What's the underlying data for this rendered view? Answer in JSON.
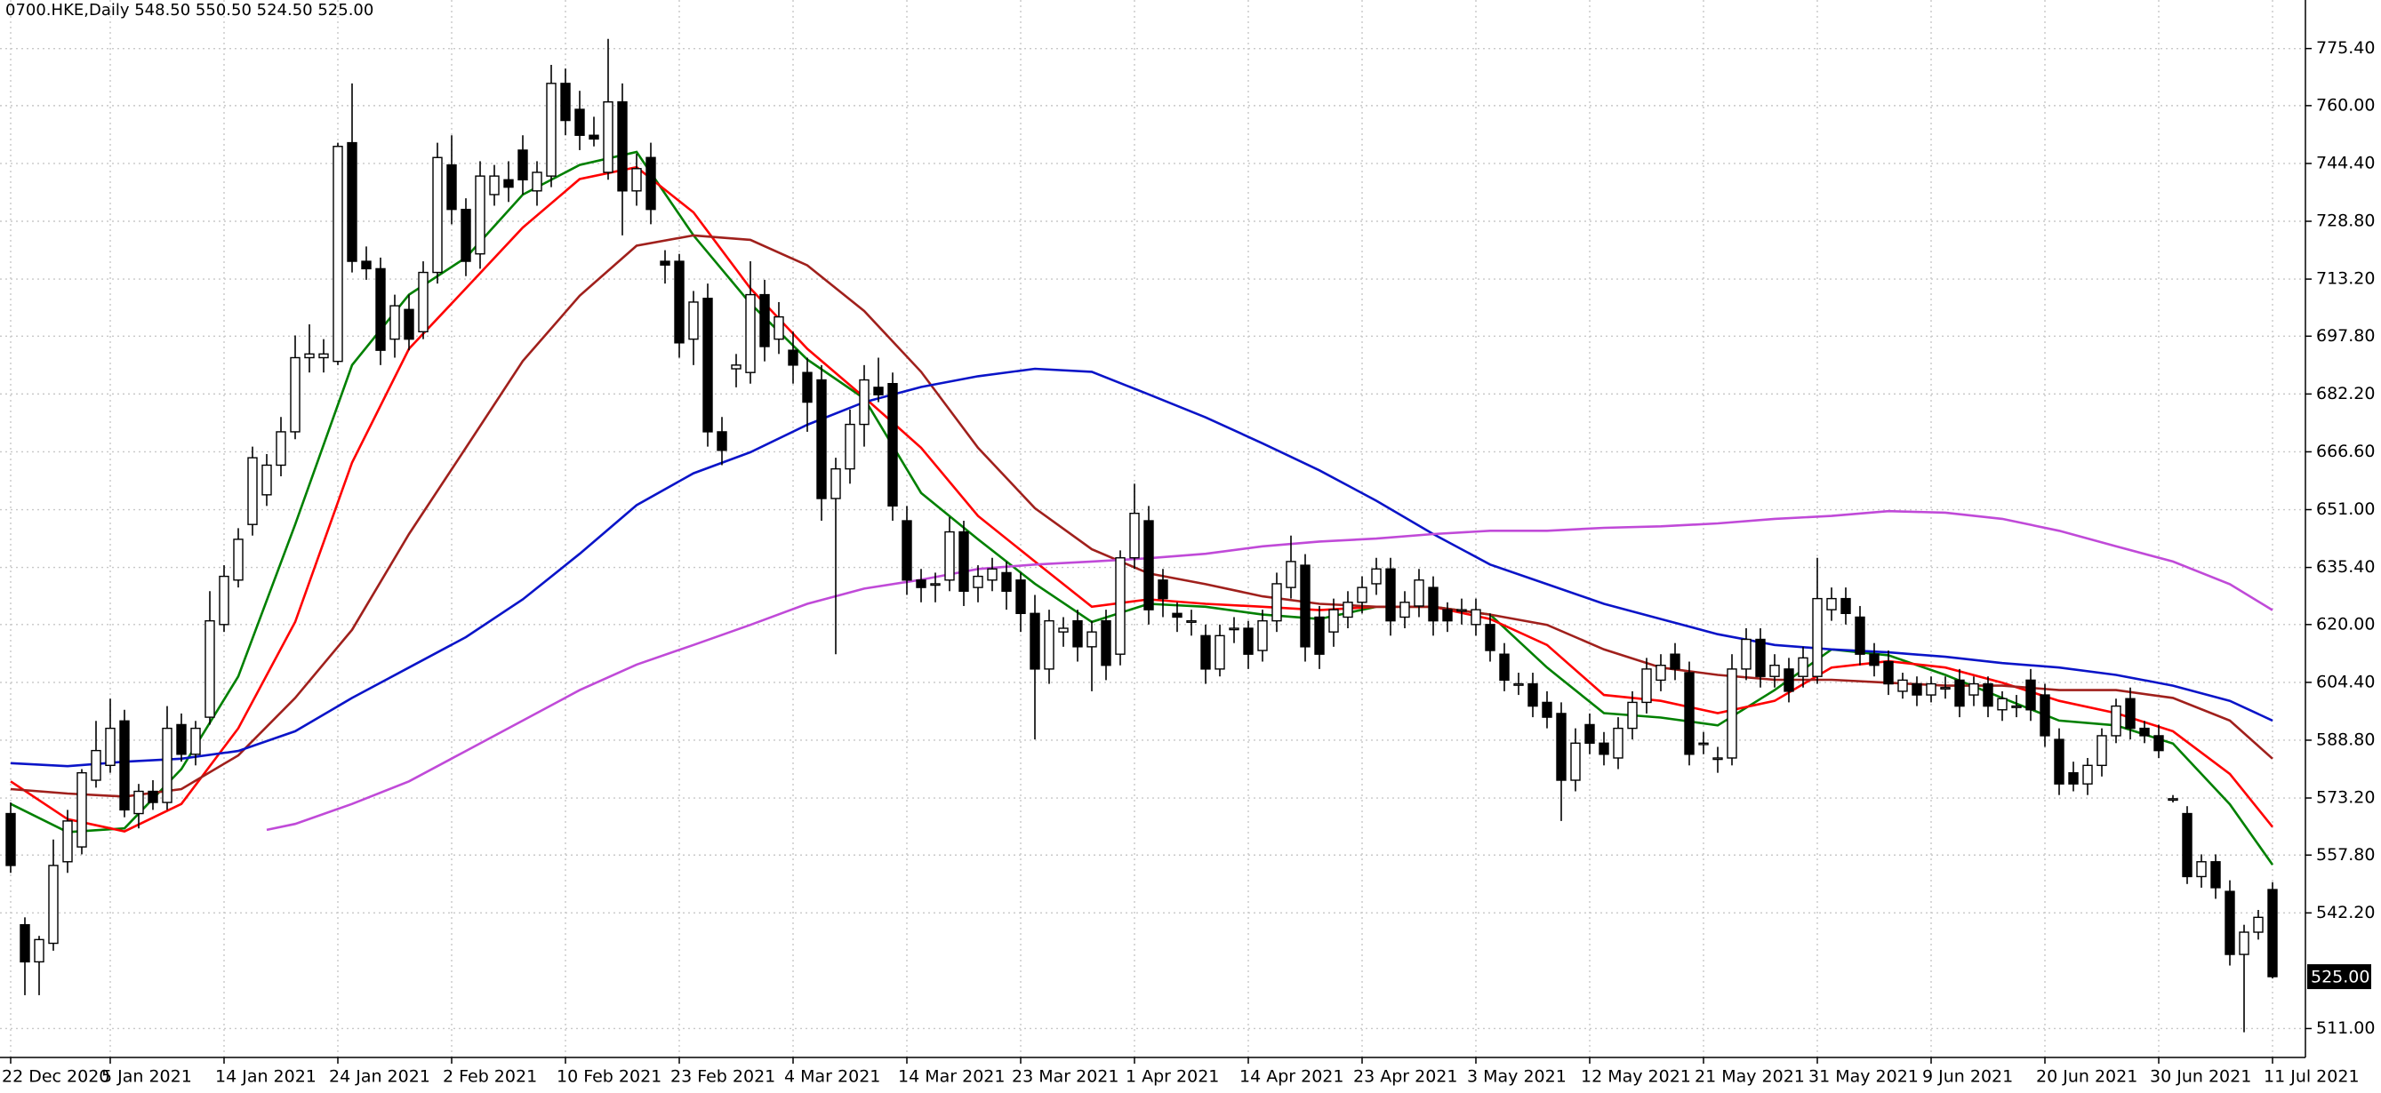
{
  "chart_data": {
    "type": "candlestick",
    "title": "0700.HKE,Daily  548.50 550.50 524.50 525.00",
    "categories": [
      "22 Dec 2020",
      null,
      null,
      null,
      null,
      null,
      null,
      "5 Jan 2021",
      null,
      null,
      null,
      null,
      null,
      null,
      null,
      "14 Jan 2021",
      null,
      null,
      null,
      null,
      null,
      null,
      null,
      "24 Jan 2021",
      null,
      null,
      null,
      null,
      null,
      null,
      null,
      "2 Feb 2021",
      null,
      null,
      null,
      null,
      null,
      null,
      null,
      "10 Feb 2021",
      null,
      null,
      null,
      null,
      null,
      null,
      null,
      "23 Feb 2021",
      null,
      null,
      null,
      null,
      null,
      null,
      null,
      "4 Mar 2021",
      null,
      null,
      null,
      null,
      null,
      null,
      null,
      "14 Mar 2021",
      null,
      null,
      null,
      null,
      null,
      null,
      null,
      "23 Mar 2021",
      null,
      null,
      null,
      null,
      null,
      null,
      null,
      "1 Apr 2021",
      null,
      null,
      null,
      null,
      null,
      null,
      null,
      "14 Apr 2021",
      null,
      null,
      null,
      null,
      null,
      null,
      null,
      "23 Apr 2021",
      null,
      null,
      null,
      null,
      null,
      null,
      null,
      "3 May 2021",
      null,
      null,
      null,
      null,
      null,
      null,
      null,
      "12 May 2021",
      null,
      null,
      null,
      null,
      null,
      null,
      null,
      "21 May 2021",
      null,
      null,
      null,
      null,
      null,
      null,
      null,
      "31 May 2021",
      null,
      null,
      null,
      null,
      null,
      null,
      null,
      "9 Jun 2021",
      null,
      null,
      null,
      null,
      null,
      null,
      null,
      "20 Jun 2021",
      null,
      null,
      null,
      null,
      null,
      null,
      null,
      "30 Jun 2021",
      null,
      null,
      null,
      null,
      null,
      null,
      null,
      "11 Jul 2021"
    ],
    "open": [
      569,
      539,
      529,
      534,
      556,
      560,
      578,
      582,
      594,
      569,
      575,
      572,
      593,
      585,
      595,
      620,
      632,
      647,
      655,
      663,
      672,
      692,
      692,
      691,
      750,
      718,
      716,
      697,
      705,
      699,
      715,
      744,
      732,
      720,
      736,
      740,
      748,
      737,
      741,
      766,
      759,
      752,
      742,
      761,
      737,
      746,
      718,
      718,
      697,
      708,
      672,
      689,
      688,
      709,
      697,
      694,
      688,
      686,
      654,
      662,
      674,
      684,
      685,
      648,
      632,
      631,
      632,
      645,
      630,
      632,
      634,
      632,
      623,
      608,
      618,
      621,
      614,
      621,
      612,
      638,
      648,
      632,
      623,
      621,
      617,
      608,
      619,
      619,
      613,
      621,
      630,
      636,
      622,
      618,
      622,
      626,
      631,
      635,
      622,
      625,
      630,
      624,
      624,
      620,
      620,
      612,
      604,
      604,
      599,
      596,
      578,
      593,
      588,
      584,
      592,
      599,
      605,
      612,
      607,
      588,
      584,
      584,
      608,
      616,
      606,
      608,
      606,
      606,
      624,
      627,
      622,
      612,
      610,
      602,
      604,
      601,
      603,
      605,
      601,
      604,
      597,
      598,
      605,
      601,
      589,
      580,
      577,
      582,
      590,
      600,
      592,
      590,
      573,
      569,
      552,
      556,
      548,
      531,
      537,
      548.5
    ],
    "high": [
      572,
      541,
      536,
      562,
      570,
      581,
      594,
      600,
      597,
      577,
      578,
      598,
      596,
      594,
      629,
      636,
      646,
      668,
      666,
      676,
      698,
      701,
      697,
      750,
      766,
      722,
      719,
      709,
      709,
      718,
      750,
      752,
      735,
      745,
      744,
      745,
      752,
      745,
      771,
      770,
      764,
      757,
      778,
      766,
      747,
      750,
      721,
      720,
      710,
      712,
      676,
      693,
      718,
      713,
      707,
      699,
      692,
      690,
      665,
      678,
      690,
      692,
      688,
      652,
      635,
      634,
      649,
      648,
      636,
      638,
      637,
      634,
      628,
      624,
      622,
      624,
      621,
      624,
      640,
      658,
      652,
      635,
      626,
      624,
      620,
      620,
      622,
      621,
      624,
      634,
      644,
      639,
      625,
      627,
      629,
      633,
      638,
      638,
      629,
      635,
      633,
      626,
      627,
      627,
      623,
      615,
      607,
      607,
      602,
      599,
      592,
      596,
      591,
      595,
      602,
      611,
      612,
      615,
      610,
      591,
      587,
      612,
      619,
      619,
      612,
      611,
      614,
      638,
      630,
      630,
      625,
      615,
      613,
      607,
      606,
      606,
      606,
      608,
      606,
      606,
      602,
      601,
      608,
      604,
      592,
      583,
      584,
      592,
      600,
      603,
      594,
      593,
      574,
      571,
      558,
      558,
      551,
      539,
      543,
      550.5
    ],
    "low": [
      553,
      520,
      520,
      532,
      553,
      558,
      576,
      580,
      568,
      565,
      570,
      570,
      583,
      582,
      593,
      618,
      630,
      644,
      652,
      660,
      670,
      688,
      688,
      690,
      715,
      713,
      690,
      692,
      694,
      697,
      712,
      728,
      714,
      716,
      733,
      734,
      736,
      733,
      738,
      752,
      748,
      749,
      740,
      725,
      733,
      728,
      712,
      692,
      690,
      668,
      663,
      684,
      685,
      691,
      693,
      685,
      672,
      648,
      612,
      658,
      668,
      680,
      648,
      628,
      626,
      626,
      629,
      625,
      626,
      629,
      624,
      618,
      589,
      604,
      614,
      610,
      602,
      605,
      609,
      635,
      620,
      622,
      618,
      617,
      604,
      606,
      615,
      608,
      610,
      618,
      627,
      610,
      608,
      614,
      619,
      623,
      628,
      617,
      619,
      622,
      617,
      618,
      620,
      617,
      610,
      602,
      601,
      595,
      592,
      567,
      575,
      585,
      582,
      581,
      589,
      596,
      602,
      605,
      582,
      585,
      580,
      582,
      605,
      603,
      603,
      599,
      603,
      604,
      621,
      620,
      609,
      606,
      601,
      600,
      598,
      599,
      600,
      595,
      598,
      595,
      594,
      595,
      594,
      587,
      574,
      575,
      574,
      579,
      588,
      589,
      588,
      584,
      572,
      550,
      549,
      546,
      528,
      510,
      535,
      524.5
    ],
    "close": [
      555,
      529,
      535,
      555,
      567,
      580,
      586,
      592,
      570,
      575,
      572,
      592,
      585,
      592,
      621,
      633,
      643,
      665,
      663,
      672,
      692,
      693,
      693,
      749,
      718,
      716,
      694,
      706,
      697,
      715,
      746,
      732,
      718,
      741,
      741,
      738,
      740,
      742,
      766,
      756,
      752,
      751,
      761,
      737,
      743,
      732,
      717,
      696,
      707,
      672,
      667,
      690,
      709,
      695,
      703,
      690,
      680,
      654,
      662,
      674,
      686,
      682,
      652,
      632,
      630,
      631,
      645,
      629,
      633,
      635,
      629,
      623,
      608,
      621,
      619,
      614,
      618,
      609,
      638,
      650,
      624,
      627,
      622,
      621,
      608,
      617,
      619,
      612,
      621,
      631,
      637,
      614,
      612,
      624,
      626,
      630,
      635,
      621,
      626,
      632,
      621,
      621,
      624,
      624,
      613,
      605,
      604,
      598,
      595,
      578,
      588,
      588,
      585,
      592,
      599,
      608,
      609,
      608,
      585,
      588,
      584,
      608,
      616,
      606,
      609,
      602,
      611,
      627,
      627,
      623,
      612,
      609,
      604,
      605,
      601,
      604,
      603,
      598,
      604,
      598,
      600,
      598,
      597,
      590,
      577,
      577,
      582,
      590,
      598,
      592,
      590,
      586,
      573,
      552,
      556,
      549,
      531,
      537,
      541,
      525
    ],
    "bull_color": "#ffffff",
    "bear_color": "#000000",
    "lines": [
      {
        "color": "#008000",
        "x": [
          0,
          4,
          8,
          12,
          16,
          20,
          24,
          28,
          32,
          36,
          40,
          44,
          48,
          52,
          56,
          60,
          64,
          68,
          72,
          76,
          80,
          84,
          88,
          92,
          96,
          100,
          104,
          108,
          112,
          116,
          120,
          124,
          128,
          132,
          136,
          140,
          144,
          148,
          152,
          156,
          159
        ],
        "values": [
          571.6,
          564,
          565,
          581,
          606,
          647,
          690,
          709,
          719,
          736,
          744,
          747.5,
          725,
          706.6,
          691.5,
          681,
          655.5,
          643,
          631,
          620.7,
          625.6,
          624.8,
          622.7,
          621.5,
          624.8,
          624.8,
          622.7,
          608.4,
          596.1,
          594.9,
          592.8,
          602.3,
          613.3,
          611.7,
          606.4,
          600.2,
          594.1,
          592.8,
          587.9,
          571.5,
          555.2
        ]
      },
      {
        "color": "#ff0000",
        "x": [
          0,
          4,
          8,
          12,
          16,
          20,
          24,
          28,
          32,
          36,
          40,
          44,
          48,
          52,
          56,
          60,
          64,
          68,
          72,
          76,
          80,
          84,
          88,
          92,
          96,
          100,
          104,
          108,
          112,
          116,
          120,
          124,
          128,
          132,
          136,
          140,
          144,
          148,
          152,
          156,
          159
        ],
        "values": [
          577.7,
          567.5,
          564.2,
          571.6,
          592,
          620.7,
          663.7,
          694.4,
          710.7,
          727.1,
          740.2,
          743.4,
          731.2,
          710.7,
          694.4,
          681.3,
          667.7,
          649.3,
          637,
          624.8,
          626.8,
          625.6,
          624.8,
          623.9,
          624.8,
          624.8,
          621.5,
          614.5,
          601,
          599.4,
          596.1,
          599.4,
          608.4,
          610.1,
          608.4,
          604.3,
          599.4,
          596.1,
          591.2,
          579.7,
          565.4
        ]
      },
      {
        "color": "#a0201c",
        "x": [
          0,
          4,
          8,
          12,
          16,
          20,
          24,
          28,
          32,
          36,
          40,
          44,
          48,
          52,
          56,
          60,
          64,
          68,
          72,
          76,
          80,
          84,
          88,
          92,
          96,
          100,
          104,
          108,
          112,
          116,
          120,
          124,
          128,
          132,
          136,
          140,
          144,
          148,
          152,
          156,
          159
        ],
        "values": [
          575.6,
          574.4,
          573.6,
          575.6,
          584.7,
          600.2,
          618.6,
          644.4,
          667.7,
          691.1,
          708.7,
          722.2,
          725,
          723.8,
          716.9,
          704.6,
          688.2,
          667.7,
          651.4,
          640.3,
          633.8,
          630.9,
          627.6,
          625.6,
          624.8,
          624.8,
          622.7,
          619.9,
          613.3,
          608.4,
          606.4,
          605.1,
          605.1,
          604.3,
          603.5,
          603.5,
          602.3,
          602.3,
          600.2,
          594.1,
          583.8
        ]
      },
      {
        "color": "#0a14c8",
        "x": [
          0,
          4,
          8,
          12,
          16,
          20,
          24,
          28,
          32,
          36,
          40,
          44,
          48,
          52,
          56,
          60,
          64,
          68,
          72,
          76,
          80,
          84,
          88,
          92,
          96,
          100,
          104,
          108,
          112,
          116,
          120,
          124,
          128,
          132,
          136,
          140,
          144,
          148,
          152,
          156,
          159
        ],
        "values": [
          582.6,
          581.8,
          583,
          583.8,
          585.9,
          591.2,
          600.2,
          608.4,
          616.6,
          626.8,
          639.1,
          652.2,
          660.8,
          666.5,
          673.9,
          680,
          684.1,
          687,
          689,
          688.2,
          682.1,
          675.9,
          668.9,
          661.6,
          653.4,
          644.4,
          636.2,
          630.9,
          625.6,
          621.5,
          617.4,
          614.5,
          613.3,
          612.5,
          611.3,
          609.6,
          608.4,
          606.4,
          603.5,
          599.4,
          594.1
        ]
      },
      {
        "color": "#c04ad8",
        "x": [
          18,
          20,
          24,
          28,
          32,
          36,
          40,
          44,
          48,
          52,
          56,
          60,
          64,
          68,
          72,
          76,
          80,
          84,
          88,
          92,
          96,
          100,
          104,
          108,
          112,
          116,
          120,
          124,
          128,
          132,
          136,
          140,
          144,
          148,
          152,
          156,
          159
        ],
        "values": [
          564.6,
          566.2,
          571.6,
          577.7,
          585.9,
          594.1,
          602.3,
          609.2,
          614.5,
          619.9,
          625.6,
          629.7,
          632.1,
          635,
          636.2,
          637,
          637.9,
          639.1,
          641.1,
          642.4,
          643.2,
          644.4,
          645.3,
          645.3,
          646.1,
          646.5,
          647.3,
          648.5,
          649.3,
          650.6,
          650.2,
          648.5,
          645.3,
          641.1,
          637,
          630.9,
          623.9
        ]
      }
    ],
    "ylim": [
      503.2,
      788.5
    ],
    "yticks": [
      {
        "value": 775.4,
        "label": "775.40"
      },
      {
        "value": 760,
        "label": "760.00"
      },
      {
        "value": 744.4,
        "label": "744.40"
      },
      {
        "value": 728.8,
        "label": "728.80"
      },
      {
        "value": 713.2,
        "label": "713.20"
      },
      {
        "value": 697.8,
        "label": "697.80"
      },
      {
        "value": 682.2,
        "label": "682.20"
      },
      {
        "value": 666.6,
        "label": "666.60"
      },
      {
        "value": 651,
        "label": "651.00"
      },
      {
        "value": 635.4,
        "label": "635.40"
      },
      {
        "value": 620,
        "label": "620.00"
      },
      {
        "value": 604.4,
        "label": "604.40"
      },
      {
        "value": 588.8,
        "label": "588.80"
      },
      {
        "value": 573.2,
        "label": "573.20"
      },
      {
        "value": 557.8,
        "label": "557.80"
      },
      {
        "value": 542.2,
        "label": "542.20"
      },
      {
        "value": 511,
        "label": "511.00"
      }
    ],
    "price_marker": {
      "value": 525,
      "label": "525.00"
    },
    "grid": true
  }
}
